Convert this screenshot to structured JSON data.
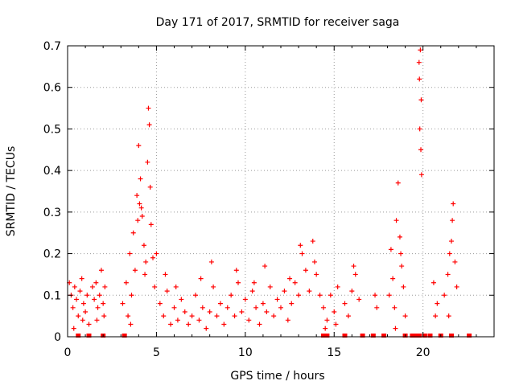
{
  "chart_data": {
    "type": "scatter",
    "title": "Day 171 of 2017, SRMTID for receiver saga",
    "xlabel": "GPS time / hours",
    "ylabel": "SRMTID / TECUs",
    "xlim": [
      0,
      24
    ],
    "ylim": [
      0,
      0.7
    ],
    "x_ticks": [
      0,
      5,
      10,
      15,
      20
    ],
    "x_tick_labels": [
      "0",
      "5",
      "10",
      "15",
      "20"
    ],
    "y_ticks": [
      0,
      0.1,
      0.2,
      0.3,
      0.4,
      0.5,
      0.6,
      0.7
    ],
    "y_tick_labels": [
      "0",
      "0.1",
      "0.2",
      "0.3",
      "0.4",
      "0.5",
      "0.6",
      "0.7"
    ],
    "grid": true,
    "marker": "+",
    "color": "#ff0000",
    "series": [
      {
        "name": "SRMTID",
        "points": [
          [
            0.1,
            0.13
          ],
          [
            0.2,
            0.1
          ],
          [
            0.3,
            0.07
          ],
          [
            0.4,
            0.12
          ],
          [
            0.5,
            0.09
          ],
          [
            0.6,
            0.05
          ],
          [
            0.7,
            0.11
          ],
          [
            0.8,
            0.14
          ],
          [
            0.9,
            0.08
          ],
          [
            1.0,
            0.06
          ],
          [
            1.1,
            0.1
          ],
          [
            1.2,
            0.03
          ],
          [
            0.35,
            0.02
          ],
          [
            0.85,
            0.04
          ],
          [
            1.4,
            0.12
          ],
          [
            1.5,
            0.09
          ],
          [
            1.6,
            0.13
          ],
          [
            1.7,
            0.07
          ],
          [
            1.8,
            0.1
          ],
          [
            1.9,
            0.16
          ],
          [
            2.0,
            0.08
          ],
          [
            2.1,
            0.12
          ],
          [
            1.65,
            0.04
          ],
          [
            2.05,
            0.05
          ],
          [
            3.1,
            0.08
          ],
          [
            3.3,
            0.13
          ],
          [
            3.5,
            0.2
          ],
          [
            3.6,
            0.1
          ],
          [
            3.7,
            0.25
          ],
          [
            3.8,
            0.16
          ],
          [
            3.9,
            0.34
          ],
          [
            4.0,
            0.46
          ],
          [
            4.1,
            0.38
          ],
          [
            4.2,
            0.29
          ],
          [
            4.3,
            0.22
          ],
          [
            4.4,
            0.18
          ],
          [
            4.5,
            0.42
          ],
          [
            4.55,
            0.55
          ],
          [
            4.6,
            0.51
          ],
          [
            4.65,
            0.36
          ],
          [
            4.7,
            0.27
          ],
          [
            4.8,
            0.19
          ],
          [
            4.9,
            0.12
          ],
          [
            5.0,
            0.2
          ],
          [
            3.4,
            0.05
          ],
          [
            3.95,
            0.28
          ],
          [
            4.15,
            0.31
          ],
          [
            4.35,
            0.15
          ],
          [
            3.55,
            0.03
          ],
          [
            4.05,
            0.32
          ],
          [
            5.2,
            0.08
          ],
          [
            5.4,
            0.05
          ],
          [
            5.6,
            0.11
          ],
          [
            5.8,
            0.03
          ],
          [
            6.0,
            0.07
          ],
          [
            6.2,
            0.04
          ],
          [
            6.4,
            0.09
          ],
          [
            6.6,
            0.06
          ],
          [
            6.8,
            0.03
          ],
          [
            7.0,
            0.05
          ],
          [
            7.2,
            0.1
          ],
          [
            7.4,
            0.04
          ],
          [
            7.6,
            0.07
          ],
          [
            7.8,
            0.02
          ],
          [
            8.0,
            0.06
          ],
          [
            8.2,
            0.12
          ],
          [
            8.4,
            0.05
          ],
          [
            8.6,
            0.08
          ],
          [
            8.8,
            0.03
          ],
          [
            9.0,
            0.07
          ],
          [
            9.2,
            0.1
          ],
          [
            9.4,
            0.05
          ],
          [
            9.6,
            0.13
          ],
          [
            9.8,
            0.06
          ],
          [
            10.0,
            0.09
          ],
          [
            10.2,
            0.04
          ],
          [
            10.4,
            0.11
          ],
          [
            10.6,
            0.07
          ],
          [
            10.8,
            0.03
          ],
          [
            11.0,
            0.08
          ],
          [
            11.2,
            0.06
          ],
          [
            11.4,
            0.12
          ],
          [
            11.6,
            0.05
          ],
          [
            11.8,
            0.09
          ],
          [
            12.0,
            0.07
          ],
          [
            12.2,
            0.11
          ],
          [
            12.4,
            0.04
          ],
          [
            12.6,
            0.08
          ],
          [
            12.8,
            0.13
          ],
          [
            13.0,
            0.1
          ],
          [
            13.2,
            0.2
          ],
          [
            13.4,
            0.16
          ],
          [
            13.6,
            0.11
          ],
          [
            13.8,
            0.23
          ],
          [
            14.0,
            0.15
          ],
          [
            14.2,
            0.1
          ],
          [
            5.5,
            0.15
          ],
          [
            6.1,
            0.12
          ],
          [
            7.5,
            0.14
          ],
          [
            8.1,
            0.18
          ],
          [
            9.5,
            0.16
          ],
          [
            10.5,
            0.13
          ],
          [
            11.1,
            0.17
          ],
          [
            12.5,
            0.14
          ],
          [
            13.1,
            0.22
          ],
          [
            13.9,
            0.18
          ],
          [
            14.4,
            0.07
          ],
          [
            14.6,
            0.04
          ],
          [
            14.8,
            0.1
          ],
          [
            15.0,
            0.06
          ],
          [
            15.2,
            0.12
          ],
          [
            14.5,
            0.02
          ],
          [
            15.1,
            0.03
          ],
          [
            15.6,
            0.08
          ],
          [
            15.8,
            0.05
          ],
          [
            16.0,
            0.11
          ],
          [
            16.2,
            0.15
          ],
          [
            16.4,
            0.09
          ],
          [
            16.1,
            0.17
          ],
          [
            17.3,
            0.1
          ],
          [
            17.4,
            0.07
          ],
          [
            18.1,
            0.1
          ],
          [
            18.2,
            0.21
          ],
          [
            18.3,
            0.14
          ],
          [
            18.4,
            0.07
          ],
          [
            18.5,
            0.28
          ],
          [
            18.6,
            0.37
          ],
          [
            18.7,
            0.24
          ],
          [
            18.8,
            0.17
          ],
          [
            18.9,
            0.12
          ],
          [
            19.0,
            0.05
          ],
          [
            18.45,
            0.02
          ],
          [
            18.75,
            0.2
          ],
          [
            19.8,
            0.62
          ],
          [
            19.85,
            0.69
          ],
          [
            19.9,
            0.57
          ],
          [
            19.82,
            0.5
          ],
          [
            19.88,
            0.45
          ],
          [
            19.92,
            0.39
          ],
          [
            19.78,
            0.66
          ],
          [
            20.6,
            0.13
          ],
          [
            20.8,
            0.08
          ],
          [
            20.7,
            0.05
          ],
          [
            21.2,
            0.1
          ],
          [
            21.4,
            0.15
          ],
          [
            21.5,
            0.2
          ],
          [
            21.6,
            0.23
          ],
          [
            21.7,
            0.32
          ],
          [
            21.8,
            0.18
          ],
          [
            21.9,
            0.12
          ],
          [
            21.65,
            0.28
          ],
          [
            21.45,
            0.05
          ]
        ]
      }
    ],
    "zero_markers_x": [
      0.6,
      1.2,
      2.0,
      3.2,
      14.4,
      14.6,
      15.6,
      16.6,
      17.2,
      17.8,
      19.0,
      19.4,
      19.6,
      19.8,
      20.1,
      20.4,
      21.0,
      21.6,
      22.6
    ]
  }
}
